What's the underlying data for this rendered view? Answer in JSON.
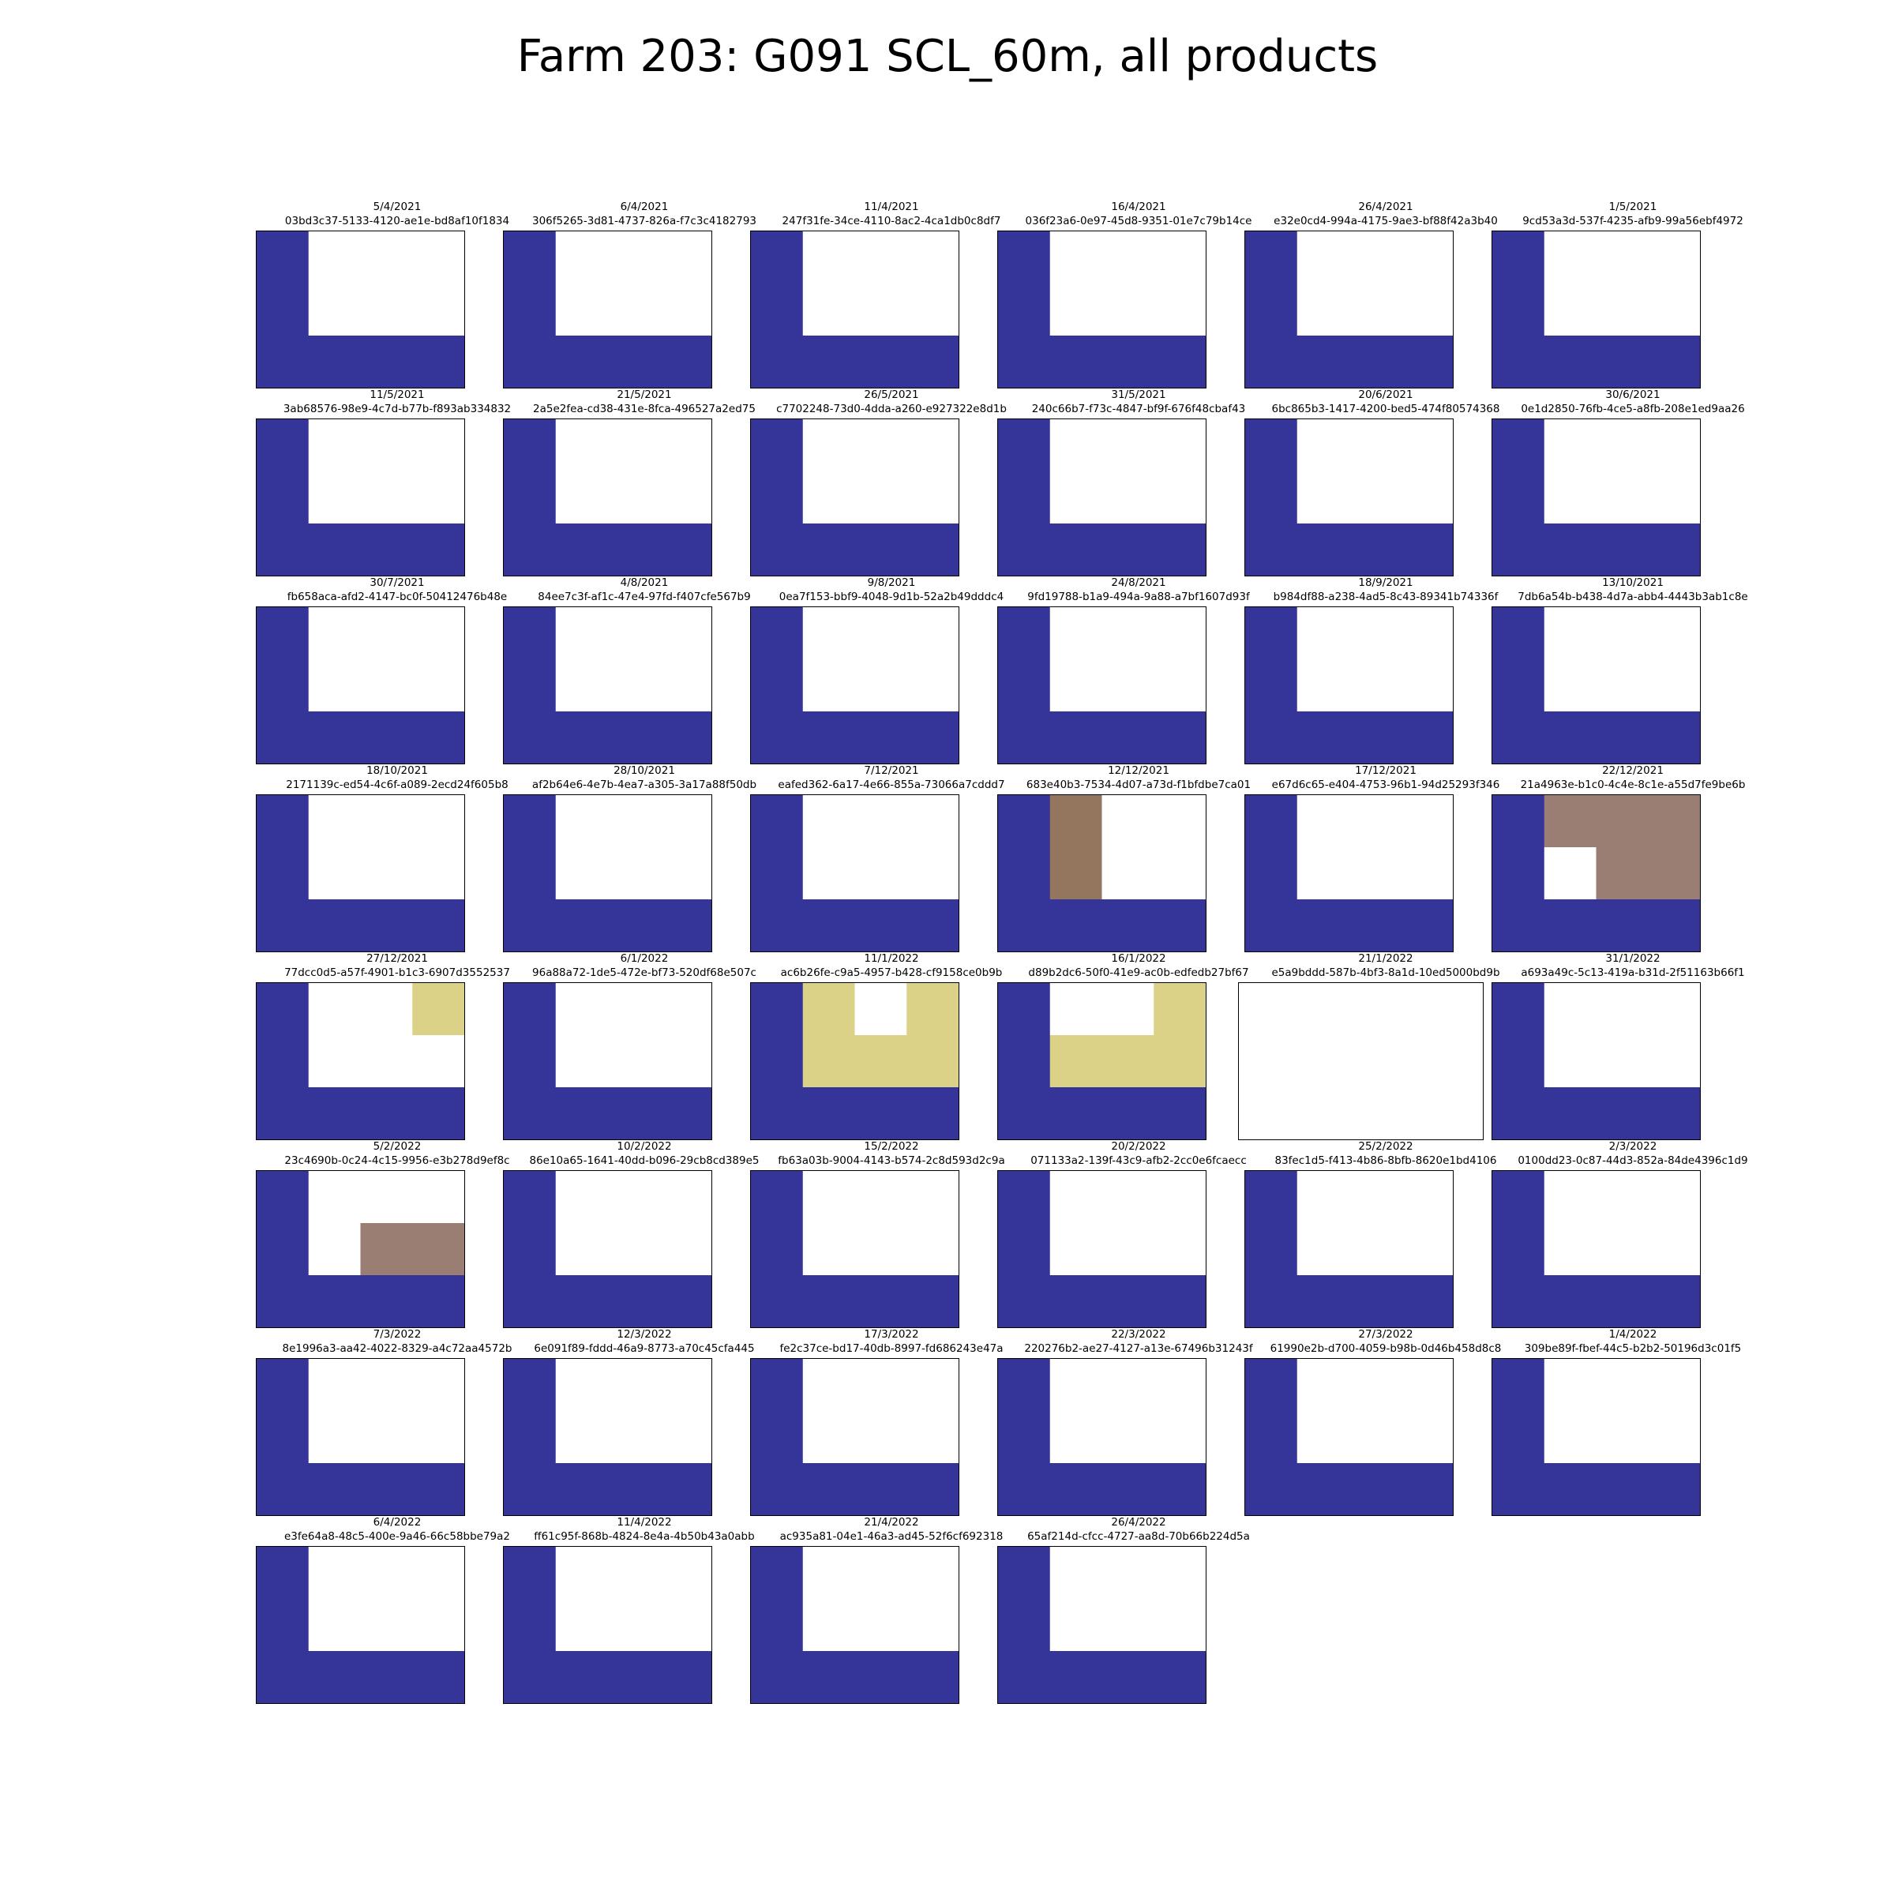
{
  "title": "Farm 203: G091 SCL_60m, all products",
  "chart_data": {
    "type": "heatmap",
    "grid": "3 rows x 4 cols per panel",
    "colors": {
      "scl_class_a": "#353599",
      "scl_class_b": "#94755e",
      "scl_class_c": "#9a7e73",
      "scl_class_d": "#dbd287",
      "empty": "#ffffff"
    },
    "panels": [
      {
        "date": "5/4/2021",
        "id": "03bd3c37-5133-4120-ae1e-bd8af10f1834",
        "cells": [
          [
            "a",
            "w",
            "w",
            "w"
          ],
          [
            "a",
            "w",
            "w",
            "w"
          ],
          [
            "a",
            "a",
            "a",
            "a"
          ]
        ]
      },
      {
        "date": "6/4/2021",
        "id": "306f5265-3d81-4737-826a-f7c3c4182793",
        "cells": [
          [
            "a",
            "w",
            "w",
            "w"
          ],
          [
            "a",
            "w",
            "w",
            "w"
          ],
          [
            "a",
            "a",
            "a",
            "a"
          ]
        ]
      },
      {
        "date": "11/4/2021",
        "id": "247f31fe-34ce-4110-8ac2-4ca1db0c8df7",
        "cells": [
          [
            "a",
            "w",
            "w",
            "w"
          ],
          [
            "a",
            "w",
            "w",
            "w"
          ],
          [
            "a",
            "a",
            "a",
            "a"
          ]
        ]
      },
      {
        "date": "16/4/2021",
        "id": "036f23a6-0e97-45d8-9351-01e7c79b14ce",
        "cells": [
          [
            "a",
            "w",
            "w",
            "w"
          ],
          [
            "a",
            "w",
            "w",
            "w"
          ],
          [
            "a",
            "a",
            "a",
            "a"
          ]
        ]
      },
      {
        "date": "26/4/2021",
        "id": "e32e0cd4-994a-4175-9ae3-bf88f42a3b40",
        "cells": [
          [
            "a",
            "w",
            "w",
            "w"
          ],
          [
            "a",
            "w",
            "w",
            "w"
          ],
          [
            "a",
            "a",
            "a",
            "a"
          ]
        ]
      },
      {
        "date": "1/5/2021",
        "id": "9cd53a3d-537f-4235-afb9-99a56ebf4972",
        "cells": [
          [
            "a",
            "w",
            "w",
            "w"
          ],
          [
            "a",
            "w",
            "w",
            "w"
          ],
          [
            "a",
            "a",
            "a",
            "a"
          ]
        ]
      },
      {
        "date": "11/5/2021",
        "id": "3ab68576-98e9-4c7d-b77b-f893ab334832",
        "cells": [
          [
            "a",
            "w",
            "w",
            "w"
          ],
          [
            "a",
            "w",
            "w",
            "w"
          ],
          [
            "a",
            "a",
            "a",
            "a"
          ]
        ]
      },
      {
        "date": "21/5/2021",
        "id": "2a5e2fea-cd38-431e-8fca-496527a2ed75",
        "cells": [
          [
            "a",
            "w",
            "w",
            "w"
          ],
          [
            "a",
            "w",
            "w",
            "w"
          ],
          [
            "a",
            "a",
            "a",
            "a"
          ]
        ]
      },
      {
        "date": "26/5/2021",
        "id": "c7702248-73d0-4dda-a260-e927322e8d1b",
        "cells": [
          [
            "a",
            "w",
            "w",
            "w"
          ],
          [
            "a",
            "w",
            "w",
            "w"
          ],
          [
            "a",
            "a",
            "a",
            "a"
          ]
        ]
      },
      {
        "date": "31/5/2021",
        "id": "240c66b7-f73c-4847-bf9f-676f48cbaf43",
        "cells": [
          [
            "a",
            "w",
            "w",
            "w"
          ],
          [
            "a",
            "w",
            "w",
            "w"
          ],
          [
            "a",
            "a",
            "a",
            "a"
          ]
        ]
      },
      {
        "date": "20/6/2021",
        "id": "6bc865b3-1417-4200-bed5-474f80574368",
        "cells": [
          [
            "a",
            "w",
            "w",
            "w"
          ],
          [
            "a",
            "w",
            "w",
            "w"
          ],
          [
            "a",
            "a",
            "a",
            "a"
          ]
        ]
      },
      {
        "date": "30/6/2021",
        "id": "0e1d2850-76fb-4ce5-a8fb-208e1ed9aa26",
        "cells": [
          [
            "a",
            "w",
            "w",
            "w"
          ],
          [
            "a",
            "w",
            "w",
            "w"
          ],
          [
            "a",
            "a",
            "a",
            "a"
          ]
        ]
      },
      {
        "date": "30/7/2021",
        "id": "fb658aca-afd2-4147-bc0f-50412476b48e",
        "cells": [
          [
            "a",
            "w",
            "w",
            "w"
          ],
          [
            "a",
            "w",
            "w",
            "w"
          ],
          [
            "a",
            "a",
            "a",
            "a"
          ]
        ]
      },
      {
        "date": "4/8/2021",
        "id": "84ee7c3f-af1c-47e4-97fd-f407cfe567b9",
        "cells": [
          [
            "a",
            "w",
            "w",
            "w"
          ],
          [
            "a",
            "w",
            "w",
            "w"
          ],
          [
            "a",
            "a",
            "a",
            "a"
          ]
        ]
      },
      {
        "date": "9/8/2021",
        "id": "0ea7f153-bbf9-4048-9d1b-52a2b49dddc4",
        "cells": [
          [
            "a",
            "w",
            "w",
            "w"
          ],
          [
            "a",
            "w",
            "w",
            "w"
          ],
          [
            "a",
            "a",
            "a",
            "a"
          ]
        ]
      },
      {
        "date": "24/8/2021",
        "id": "9fd19788-b1a9-494a-9a88-a7bf1607d93f",
        "cells": [
          [
            "a",
            "w",
            "w",
            "w"
          ],
          [
            "a",
            "w",
            "w",
            "w"
          ],
          [
            "a",
            "a",
            "a",
            "a"
          ]
        ]
      },
      {
        "date": "18/9/2021",
        "id": "b984df88-a238-4ad5-8c43-89341b74336f",
        "cells": [
          [
            "a",
            "w",
            "w",
            "w"
          ],
          [
            "a",
            "w",
            "w",
            "w"
          ],
          [
            "a",
            "a",
            "a",
            "a"
          ]
        ]
      },
      {
        "date": "13/10/2021",
        "id": "7db6a54b-b438-4d7a-abb4-4443b3ab1c8e",
        "cells": [
          [
            "a",
            "w",
            "w",
            "w"
          ],
          [
            "a",
            "w",
            "w",
            "w"
          ],
          [
            "a",
            "a",
            "a",
            "a"
          ]
        ]
      },
      {
        "date": "18/10/2021",
        "id": "2171139c-ed54-4c6f-a089-2ecd24f605b8",
        "cells": [
          [
            "a",
            "w",
            "w",
            "w"
          ],
          [
            "a",
            "w",
            "w",
            "w"
          ],
          [
            "a",
            "a",
            "a",
            "a"
          ]
        ]
      },
      {
        "date": "28/10/2021",
        "id": "af2b64e6-4e7b-4ea7-a305-3a17a88f50db",
        "cells": [
          [
            "a",
            "w",
            "w",
            "w"
          ],
          [
            "a",
            "w",
            "w",
            "w"
          ],
          [
            "a",
            "a",
            "a",
            "a"
          ]
        ]
      },
      {
        "date": "7/12/2021",
        "id": "eafed362-6a17-4e66-855a-73066a7cddd7",
        "cells": [
          [
            "a",
            "w",
            "w",
            "w"
          ],
          [
            "a",
            "w",
            "w",
            "w"
          ],
          [
            "a",
            "a",
            "a",
            "a"
          ]
        ]
      },
      {
        "date": "12/12/2021",
        "id": "683e40b3-7534-4d07-a73d-f1bfdbe7ca01",
        "cells": [
          [
            "a",
            "b",
            "w",
            "w"
          ],
          [
            "a",
            "b",
            "w",
            "w"
          ],
          [
            "a",
            "a",
            "a",
            "a"
          ]
        ]
      },
      {
        "date": "17/12/2021",
        "id": "e67d6c65-e404-4753-96b1-94d25293f346",
        "cells": [
          [
            "a",
            "w",
            "w",
            "w"
          ],
          [
            "a",
            "w",
            "w",
            "w"
          ],
          [
            "a",
            "a",
            "a",
            "a"
          ]
        ]
      },
      {
        "date": "22/12/2021",
        "id": "21a4963e-b1c0-4c4e-8c1e-a55d7fe9be6b",
        "cells": [
          [
            "a",
            "c",
            "c",
            "c"
          ],
          [
            "a",
            "w",
            "c",
            "c"
          ],
          [
            "a",
            "a",
            "a",
            "a"
          ]
        ]
      },
      {
        "date": "27/12/2021",
        "id": "77dcc0d5-a57f-4901-b1c3-6907d3552537",
        "cells": [
          [
            "a",
            "w",
            "w",
            "d"
          ],
          [
            "a",
            "w",
            "w",
            "w"
          ],
          [
            "a",
            "a",
            "a",
            "a"
          ]
        ]
      },
      {
        "date": "6/1/2022",
        "id": "96a88a72-1de5-472e-bf73-520df68e507c",
        "cells": [
          [
            "a",
            "w",
            "w",
            "w"
          ],
          [
            "a",
            "w",
            "w",
            "w"
          ],
          [
            "a",
            "a",
            "a",
            "a"
          ]
        ]
      },
      {
        "date": "11/1/2022",
        "id": "ac6b26fe-c9a5-4957-b428-cf9158ce0b9b",
        "cells": [
          [
            "a",
            "d",
            "w",
            "d"
          ],
          [
            "a",
            "d",
            "d",
            "d"
          ],
          [
            "a",
            "a",
            "a",
            "a"
          ]
        ]
      },
      {
        "date": "16/1/2022",
        "id": "d89b2dc6-50f0-41e9-ac0b-edfedb27bf67",
        "cells": [
          [
            "a",
            "w",
            "w",
            "d"
          ],
          [
            "a",
            "d",
            "d",
            "d"
          ],
          [
            "a",
            "a",
            "a",
            "a"
          ]
        ]
      },
      {
        "date": "21/1/2022",
        "id": "e5a9bddd-587b-4bf3-8a1d-10ed5000bd9b",
        "cells": [
          [
            "w",
            "w",
            "w",
            "w"
          ],
          [
            "w",
            "w",
            "w",
            "w"
          ],
          [
            "w",
            "w",
            "w",
            "w"
          ]
        ]
      },
      {
        "date": "31/1/2022",
        "id": "a693a49c-5c13-419a-b31d-2f51163b66f1",
        "cells": [
          [
            "a",
            "w",
            "w",
            "w"
          ],
          [
            "a",
            "w",
            "w",
            "w"
          ],
          [
            "a",
            "a",
            "a",
            "a"
          ]
        ]
      },
      {
        "date": "5/2/2022",
        "id": "23c4690b-0c24-4c15-9956-e3b278d9ef8c",
        "cells": [
          [
            "a",
            "w",
            "w",
            "w"
          ],
          [
            "a",
            "w",
            "c",
            "c"
          ],
          [
            "a",
            "a",
            "a",
            "a"
          ]
        ]
      },
      {
        "date": "10/2/2022",
        "id": "86e10a65-1641-40dd-b096-29cb8cd389e5",
        "cells": [
          [
            "a",
            "w",
            "w",
            "w"
          ],
          [
            "a",
            "w",
            "w",
            "w"
          ],
          [
            "a",
            "a",
            "a",
            "a"
          ]
        ]
      },
      {
        "date": "15/2/2022",
        "id": "fb63a03b-9004-4143-b574-2c8d593d2c9a",
        "cells": [
          [
            "a",
            "w",
            "w",
            "w"
          ],
          [
            "a",
            "w",
            "w",
            "w"
          ],
          [
            "a",
            "a",
            "a",
            "a"
          ]
        ]
      },
      {
        "date": "20/2/2022",
        "id": "071133a2-139f-43c9-afb2-2cc0e6fcaecc",
        "cells": [
          [
            "a",
            "w",
            "w",
            "w"
          ],
          [
            "a",
            "w",
            "w",
            "w"
          ],
          [
            "a",
            "a",
            "a",
            "a"
          ]
        ]
      },
      {
        "date": "25/2/2022",
        "id": "83fec1d5-f413-4b86-8bfb-8620e1bd4106",
        "cells": [
          [
            "a",
            "w",
            "w",
            "w"
          ],
          [
            "a",
            "w",
            "w",
            "w"
          ],
          [
            "a",
            "a",
            "a",
            "a"
          ]
        ]
      },
      {
        "date": "2/3/2022",
        "id": "0100dd23-0c87-44d3-852a-84de4396c1d9",
        "cells": [
          [
            "a",
            "w",
            "w",
            "w"
          ],
          [
            "a",
            "w",
            "w",
            "w"
          ],
          [
            "a",
            "a",
            "a",
            "a"
          ]
        ]
      },
      {
        "date": "7/3/2022",
        "id": "8e1996a3-aa42-4022-8329-a4c72aa4572b",
        "cells": [
          [
            "a",
            "w",
            "w",
            "w"
          ],
          [
            "a",
            "w",
            "w",
            "w"
          ],
          [
            "a",
            "a",
            "a",
            "a"
          ]
        ]
      },
      {
        "date": "12/3/2022",
        "id": "6e091f89-fddd-46a9-8773-a70c45cfa445",
        "cells": [
          [
            "a",
            "w",
            "w",
            "w"
          ],
          [
            "a",
            "w",
            "w",
            "w"
          ],
          [
            "a",
            "a",
            "a",
            "a"
          ]
        ]
      },
      {
        "date": "17/3/2022",
        "id": "fe2c37ce-bd17-40db-8997-fd686243e47a",
        "cells": [
          [
            "a",
            "w",
            "w",
            "w"
          ],
          [
            "a",
            "w",
            "w",
            "w"
          ],
          [
            "a",
            "a",
            "a",
            "a"
          ]
        ]
      },
      {
        "date": "22/3/2022",
        "id": "220276b2-ae27-4127-a13e-67496b31243f",
        "cells": [
          [
            "a",
            "w",
            "w",
            "w"
          ],
          [
            "a",
            "w",
            "w",
            "w"
          ],
          [
            "a",
            "a",
            "a",
            "a"
          ]
        ]
      },
      {
        "date": "27/3/2022",
        "id": "61990e2b-d700-4059-b98b-0d46b458d8c8",
        "cells": [
          [
            "a",
            "w",
            "w",
            "w"
          ],
          [
            "a",
            "w",
            "w",
            "w"
          ],
          [
            "a",
            "a",
            "a",
            "a"
          ]
        ]
      },
      {
        "date": "1/4/2022",
        "id": "309be89f-fbef-44c5-b2b2-50196d3c01f5",
        "cells": [
          [
            "a",
            "w",
            "w",
            "w"
          ],
          [
            "a",
            "w",
            "w",
            "w"
          ],
          [
            "a",
            "a",
            "a",
            "a"
          ]
        ]
      },
      {
        "date": "6/4/2022",
        "id": "e3fe64a8-48c5-400e-9a46-66c58bbe79a2",
        "cells": [
          [
            "a",
            "w",
            "w",
            "w"
          ],
          [
            "a",
            "w",
            "w",
            "w"
          ],
          [
            "a",
            "a",
            "a",
            "a"
          ]
        ]
      },
      {
        "date": "11/4/2022",
        "id": "ff61c95f-868b-4824-8e4a-4b50b43a0abb",
        "cells": [
          [
            "a",
            "w",
            "w",
            "w"
          ],
          [
            "a",
            "w",
            "w",
            "w"
          ],
          [
            "a",
            "a",
            "a",
            "a"
          ]
        ]
      },
      {
        "date": "21/4/2022",
        "id": "ac935a81-04e1-46a3-ad45-52f6cf692318",
        "cells": [
          [
            "a",
            "w",
            "w",
            "w"
          ],
          [
            "a",
            "w",
            "w",
            "w"
          ],
          [
            "a",
            "a",
            "a",
            "a"
          ]
        ]
      },
      {
        "date": "26/4/2022",
        "id": "65af214d-cfcc-4727-aa8d-70b66b224d5a",
        "cells": [
          [
            "a",
            "w",
            "w",
            "w"
          ],
          [
            "a",
            "w",
            "w",
            "w"
          ],
          [
            "a",
            "a",
            "a",
            "a"
          ]
        ]
      }
    ]
  }
}
